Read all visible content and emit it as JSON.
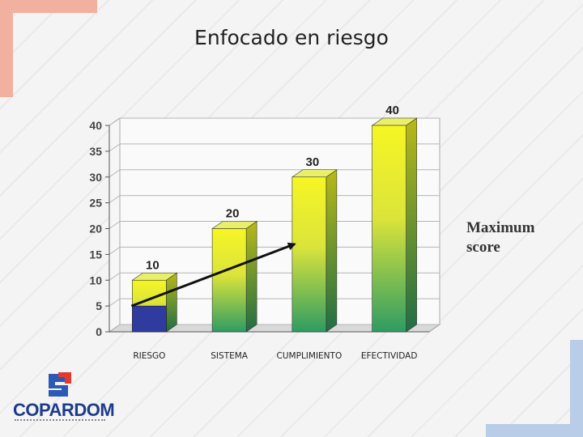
{
  "slide": {
    "title": "Enfocado en riesgo",
    "logo_text": "COPARDOM",
    "side_label_line1": "Maximum",
    "side_label_line2": "score"
  },
  "chart_data": {
    "type": "bar",
    "categories": [
      "RIESGO",
      "SISTEMA",
      "CUMPLIMIENTO",
      "EFECTIVIDAD"
    ],
    "values": [
      10,
      20,
      30,
      40
    ],
    "data_labels": [
      "10",
      "20",
      "30",
      "40"
    ],
    "highlight": {
      "category": "RIESGO",
      "value": 5,
      "color": "#2f3b9e"
    },
    "ylim": [
      0,
      40
    ],
    "yticks": [
      0,
      5,
      10,
      15,
      20,
      25,
      30,
      35,
      40
    ],
    "grid": true,
    "trend_arrow": {
      "from": {
        "category": "RIESGO",
        "y": 5
      },
      "to": {
        "category": "CUMPLIMIENTO",
        "y": 17
      }
    },
    "colors": {
      "bar_top": "#f3f322",
      "bar_bottom": "#2e9c63",
      "grid": "#b5b5b5"
    }
  }
}
